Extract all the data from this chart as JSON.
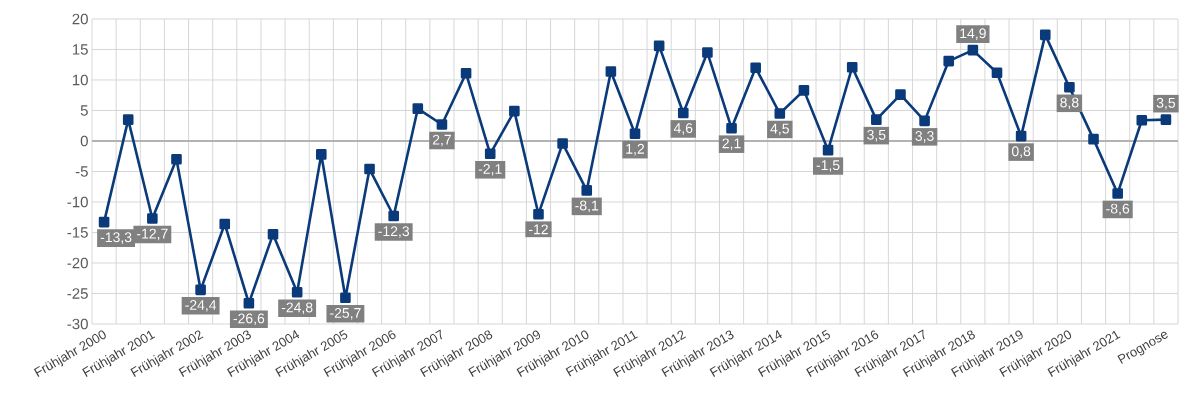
{
  "chart_data": {
    "type": "line",
    "categories": [
      "Frühjahr 2000",
      null,
      "Frühjahr 2001",
      null,
      "Frühjahr 2002",
      null,
      "Frühjahr 2003",
      null,
      "Frühjahr 2004",
      null,
      "Frühjahr 2005",
      null,
      "Frühjahr 2006",
      null,
      "Frühjahr 2007",
      null,
      "Frühjahr 2008",
      null,
      "Frühjahr 2009",
      null,
      "Frühjahr 2010",
      null,
      "Frühjahr 2011",
      null,
      "Frühjahr 2012",
      null,
      "Frühjahr 2013",
      null,
      "Frühjahr 2014",
      null,
      "Frühjahr 2015",
      null,
      "Frühjahr 2016",
      null,
      "Frühjahr 2017",
      null,
      "Frühjahr 2018",
      null,
      "Frühjahr 2019",
      null,
      "Frühjahr 2020",
      null,
      "Frühjahr 2021",
      null,
      "Prognose"
    ],
    "series": [
      {
        "color": "#0a3a7a",
        "values": [
          -13.3,
          3.5,
          -12.7,
          -3.0,
          -24.4,
          -13.6,
          -26.6,
          -15.3,
          -24.8,
          -2.2,
          -25.7,
          -4.6,
          -12.3,
          5.3,
          2.7,
          11.1,
          -2.1,
          4.9,
          -12,
          -0.4,
          -8.1,
          11.4,
          1.2,
          15.6,
          4.6,
          14.5,
          2.1,
          12.0,
          4.5,
          8.3,
          -1.5,
          12.1,
          3.5,
          7.6,
          3.3,
          13.1,
          14.9,
          11.2,
          0.8,
          17.4,
          8.8,
          0.3,
          -8.6,
          3.4,
          3.5
        ],
        "value_labels": [
          "-13,3",
          null,
          "-12,7",
          null,
          "-24,4",
          null,
          "-26,6",
          null,
          "-24,8",
          null,
          "-25,7",
          null,
          "-12,3",
          null,
          "2,7",
          null,
          "-2,1",
          null,
          "-12",
          null,
          "-8,1",
          null,
          "1,2",
          null,
          "4,6",
          null,
          "2,1",
          null,
          "4,5",
          null,
          "-1,5",
          null,
          "3,5",
          null,
          "3,3",
          null,
          "14,9",
          null,
          "0,8",
          null,
          "8,8",
          null,
          "-8,6",
          null,
          "3,5"
        ]
      }
    ],
    "ylim": [
      -30,
      20
    ],
    "yticks": [
      -30,
      -25,
      -20,
      -15,
      -10,
      -5,
      0,
      5,
      10,
      15,
      20
    ],
    "grid": true,
    "marker": "square",
    "line_style": "solid"
  }
}
